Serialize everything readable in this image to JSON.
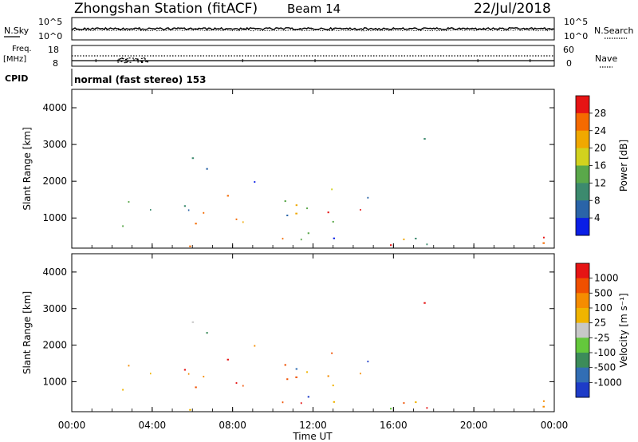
{
  "header": {
    "station": "Zhongshan Station (fitACF)",
    "beam": "Beam 14",
    "date": "22/Jul/2018"
  },
  "noise_panel": {
    "left_label": "N.Sky",
    "right_label": "N.Search",
    "left_ticks": [
      "10^5",
      "10^0"
    ],
    "right_ticks": [
      "10^5",
      "10^0"
    ]
  },
  "freq_panel": {
    "left_label": "Freq.",
    "left_unit": "[MHz]",
    "left_ticks": [
      "18",
      "8"
    ],
    "right_label": "Nave",
    "right_ticks": [
      "60",
      "0"
    ]
  },
  "cpid": {
    "label": "CPID",
    "text": "normal (fast stereo) 153"
  },
  "chart_data": [
    {
      "type": "heatmap",
      "title": "",
      "xlabel": "",
      "ylabel": "Slant Range [km]",
      "x_range_hours": [
        0,
        24
      ],
      "ylim": [
        180,
        4500
      ],
      "y_ticks": [
        1000,
        2000,
        3000,
        4000
      ],
      "colorbar": {
        "label": "Power [dB]",
        "ticks": [
          "4",
          "8",
          "12",
          "16",
          "20",
          "24",
          "28"
        ],
        "range": [
          0,
          32
        ],
        "colors": [
          "#0a1ee6",
          "#2a64a8",
          "#3c8a6e",
          "#5aa84a",
          "#d2d21e",
          "#f0a800",
          "#f56a00",
          "#e61414"
        ]
      }
    },
    {
      "type": "heatmap",
      "title": "",
      "xlabel": "Time UT",
      "ylabel": "Slant Range [km]",
      "x_range_hours": [
        0,
        24
      ],
      "ylim": [
        180,
        4500
      ],
      "y_ticks": [
        1000,
        2000,
        3000,
        4000
      ],
      "x_ticks": [
        "00:00",
        "04:00",
        "08:00",
        "12:00",
        "16:00",
        "20:00",
        "00:00"
      ],
      "colorbar": {
        "label": "Velocity [m s^-1]",
        "ticks": [
          "1000",
          "500",
          "100",
          "25",
          "-25",
          "-100",
          "-500",
          "-1000"
        ],
        "colors": [
          "#1e3cc8",
          "#326eb4",
          "#3c8c5a",
          "#64c83c",
          "#c8c8c8",
          "#f0b400",
          "#f58c00",
          "#f05000",
          "#e61414"
        ]
      }
    }
  ]
}
